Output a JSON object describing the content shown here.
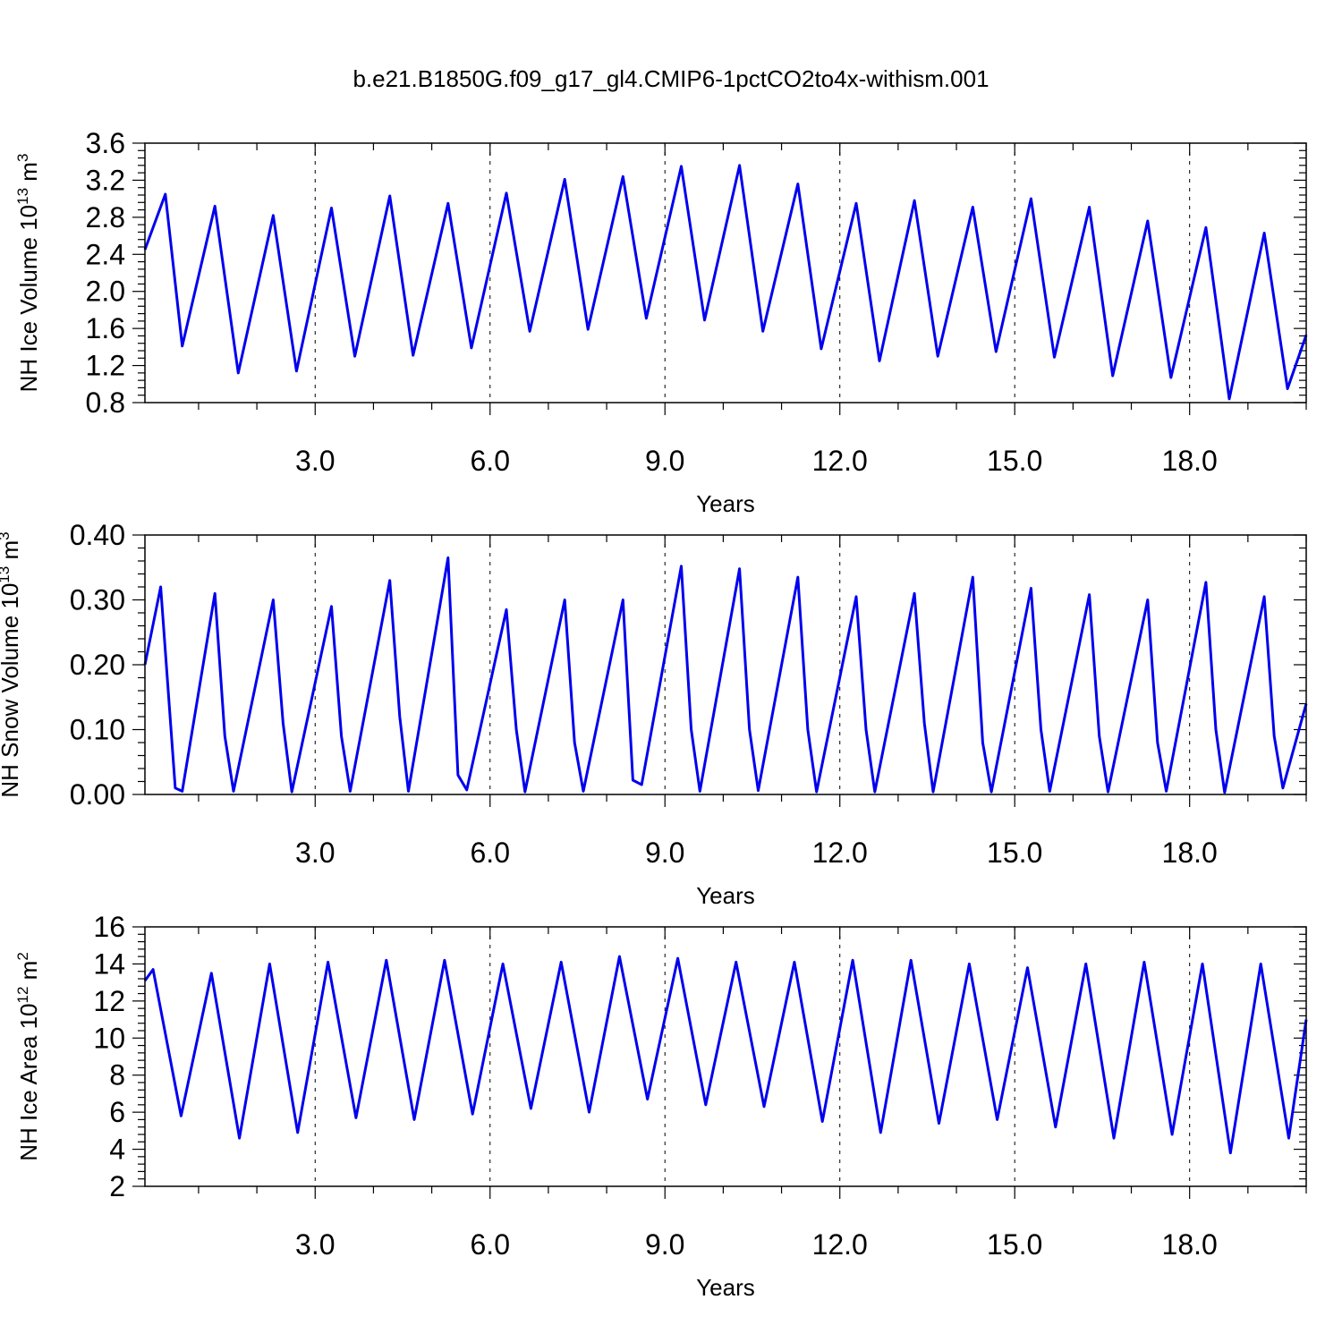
{
  "title": "b.e21.B1850G.f09_g17_gl4.CMIP6-1pctCO2to4x-withism.001",
  "colors": {
    "series": "#0000ee",
    "axes": "#000000",
    "background": "#ffffff"
  },
  "chart_data": [
    {
      "type": "line",
      "title": "b.e21.B1850G.f09_g17_gl4.CMIP6-1pctCO2to4x-withism.001",
      "xlabel": "Years",
      "ylabel": {
        "text": "NH Ice Volume 10",
        "exp": "13",
        "unit": " m",
        "unit_exp": "3"
      },
      "xlim": [
        0.08,
        20.0
      ],
      "ylim": [
        0.8,
        3.6
      ],
      "xticks": [
        3,
        6,
        9,
        12,
        15,
        18
      ],
      "xtick_labels": [
        "3.0",
        "6.0",
        "9.0",
        "12.0",
        "15.0",
        "18.0"
      ],
      "yticks": [
        0.8,
        1.2,
        1.6,
        2.0,
        2.4,
        2.8,
        3.2,
        3.6
      ],
      "ytick_labels": [
        "0.8",
        "1.2",
        "1.6",
        "2.0",
        "2.4",
        "2.8",
        "3.2",
        "3.6"
      ],
      "grid": "dashed vertical at major x ticks",
      "series": [
        {
          "name": "NH Ice Volume",
          "x": [
            0.08,
            0.43,
            0.72,
            1.28,
            1.68,
            2.28,
            2.68,
            3.28,
            3.68,
            4.28,
            4.68,
            5.28,
            5.68,
            6.28,
            6.68,
            7.28,
            7.68,
            8.28,
            8.68,
            9.28,
            9.68,
            10.28,
            10.68,
            11.28,
            11.68,
            12.28,
            12.68,
            13.28,
            13.68,
            14.28,
            14.68,
            15.28,
            15.68,
            16.28,
            16.68,
            17.28,
            17.68,
            18.28,
            18.68,
            19.28,
            19.68,
            20.0
          ],
          "values": [
            2.45,
            3.05,
            1.41,
            2.92,
            1.12,
            2.82,
            1.14,
            2.9,
            1.3,
            3.03,
            1.31,
            2.95,
            1.39,
            3.06,
            1.57,
            3.21,
            1.59,
            3.24,
            1.71,
            3.35,
            1.69,
            3.36,
            1.57,
            3.16,
            1.38,
            2.95,
            1.25,
            2.98,
            1.3,
            2.91,
            1.35,
            3.0,
            1.29,
            2.91,
            1.09,
            2.76,
            1.07,
            2.69,
            0.84,
            2.63,
            0.95,
            1.53
          ]
        }
      ]
    },
    {
      "type": "line",
      "xlabel": "Years",
      "ylabel": {
        "text": "NH Snow Volume 10",
        "exp": "13",
        "unit": " m",
        "unit_exp": "3"
      },
      "xlim": [
        0.08,
        20.0
      ],
      "ylim": [
        0.0,
        0.4
      ],
      "xticks": [
        3,
        6,
        9,
        12,
        15,
        18
      ],
      "xtick_labels": [
        "3.0",
        "6.0",
        "9.0",
        "12.0",
        "15.0",
        "18.0"
      ],
      "yticks": [
        0.0,
        0.1,
        0.2,
        0.3,
        0.4
      ],
      "ytick_labels": [
        "0.00",
        "0.10",
        "0.20",
        "0.30",
        "0.40"
      ],
      "grid": "dashed vertical at major x ticks",
      "series": [
        {
          "name": "NH Snow Volume",
          "x": [
            0.08,
            0.35,
            0.6,
            0.72,
            1.28,
            1.45,
            1.6,
            2.28,
            2.45,
            2.6,
            3.28,
            3.45,
            3.6,
            4.28,
            4.45,
            4.6,
            5.28,
            5.45,
            5.6,
            6.28,
            6.45,
            6.6,
            7.28,
            7.45,
            7.6,
            8.28,
            8.45,
            8.6,
            9.28,
            9.45,
            9.6,
            10.28,
            10.45,
            10.6,
            11.28,
            11.45,
            11.6,
            12.28,
            12.45,
            12.6,
            13.28,
            13.45,
            13.6,
            14.28,
            14.45,
            14.6,
            15.28,
            15.45,
            15.6,
            16.28,
            16.45,
            16.6,
            17.28,
            17.45,
            17.6,
            18.28,
            18.45,
            18.6,
            19.28,
            19.45,
            19.6,
            20.0
          ],
          "values": [
            0.2,
            0.32,
            0.01,
            0.005,
            0.31,
            0.09,
            0.005,
            0.3,
            0.11,
            0.004,
            0.29,
            0.09,
            0.005,
            0.33,
            0.12,
            0.005,
            0.365,
            0.03,
            0.007,
            0.285,
            0.1,
            0.004,
            0.3,
            0.08,
            0.005,
            0.3,
            0.022,
            0.015,
            0.352,
            0.1,
            0.005,
            0.348,
            0.1,
            0.006,
            0.335,
            0.1,
            0.004,
            0.305,
            0.1,
            0.004,
            0.31,
            0.11,
            0.004,
            0.335,
            0.08,
            0.004,
            0.318,
            0.1,
            0.005,
            0.308,
            0.09,
            0.004,
            0.3,
            0.08,
            0.005,
            0.327,
            0.1,
            0.003,
            0.305,
            0.09,
            0.01,
            0.14
          ]
        }
      ]
    },
    {
      "type": "line",
      "xlabel": "Years",
      "ylabel": {
        "text": "NH Ice Area 10",
        "exp": "12",
        "unit": " m",
        "unit_exp": "2"
      },
      "xlim": [
        0.08,
        20.0
      ],
      "ylim": [
        2,
        16
      ],
      "xticks": [
        3,
        6,
        9,
        12,
        15,
        18
      ],
      "xtick_labels": [
        "3.0",
        "6.0",
        "9.0",
        "12.0",
        "15.0",
        "18.0"
      ],
      "yticks": [
        2,
        4,
        6,
        8,
        10,
        12,
        14,
        16
      ],
      "ytick_labels": [
        "2",
        "4",
        "6",
        "8",
        "10",
        "12",
        "14",
        "16"
      ],
      "grid": "dashed vertical at major x ticks",
      "series": [
        {
          "name": "NH Ice Area",
          "x": [
            0.08,
            0.22,
            0.7,
            1.22,
            1.7,
            2.22,
            2.7,
            3.22,
            3.7,
            4.22,
            4.7,
            5.22,
            5.7,
            6.22,
            6.7,
            7.22,
            7.7,
            8.22,
            8.7,
            9.22,
            9.7,
            10.22,
            10.7,
            11.22,
            11.7,
            12.22,
            12.7,
            13.22,
            13.7,
            14.22,
            14.7,
            15.22,
            15.7,
            16.22,
            16.7,
            17.22,
            17.7,
            18.22,
            18.7,
            19.22,
            19.7,
            20.0
          ],
          "values": [
            13.1,
            13.7,
            5.8,
            13.5,
            4.6,
            14.0,
            4.9,
            14.1,
            5.7,
            14.2,
            5.6,
            14.2,
            5.9,
            14.0,
            6.2,
            14.1,
            6.0,
            14.4,
            6.7,
            14.3,
            6.4,
            14.1,
            6.3,
            14.1,
            5.5,
            14.2,
            4.9,
            14.2,
            5.4,
            14.0,
            5.6,
            13.8,
            5.2,
            14.0,
            4.6,
            14.1,
            4.8,
            14.0,
            3.8,
            14.0,
            4.6,
            11.0
          ]
        }
      ]
    }
  ]
}
